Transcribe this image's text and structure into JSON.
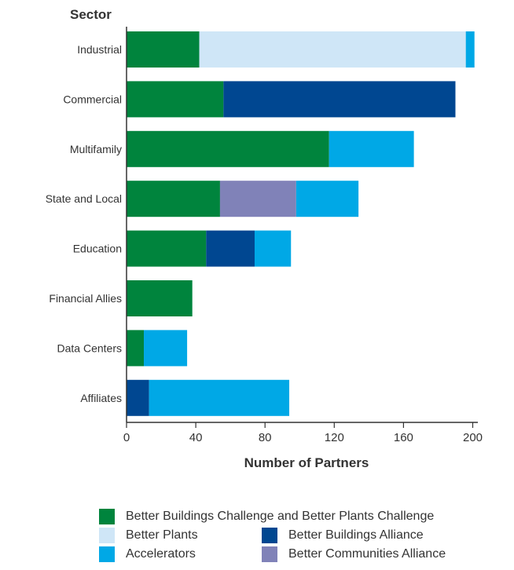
{
  "chart_data": {
    "type": "bar",
    "orientation": "horizontal",
    "stacked": true,
    "ylabel": "Sector",
    "xlabel": "Number of Partners",
    "xlim": [
      0,
      200
    ],
    "xticks": [
      0,
      40,
      80,
      120,
      160,
      200
    ],
    "grid": false,
    "legend_position": "bottom",
    "categories": [
      "Industrial",
      "Commercial",
      "Multifamily",
      "State and Local",
      "Education",
      "Financial Allies",
      "Data Centers",
      "Affiliates"
    ],
    "series": [
      {
        "name": "Better Buildings Challenge and Better Plants Challenge",
        "color": "#00843D",
        "values": [
          42,
          56,
          117,
          54,
          46,
          38,
          10,
          0
        ]
      },
      {
        "name": "Better Plants",
        "color": "#CFE6F7",
        "values": [
          154,
          0,
          0,
          0,
          0,
          0,
          0,
          0
        ]
      },
      {
        "name": "Better Buildings Alliance",
        "color": "#004791",
        "values": [
          0,
          134,
          0,
          0,
          28,
          0,
          0,
          13
        ]
      },
      {
        "name": "Better Communities Alliance",
        "color": "#8082B8",
        "values": [
          0,
          0,
          0,
          44,
          0,
          0,
          0,
          0
        ]
      },
      {
        "name": "Accelerators",
        "color": "#00A8E6",
        "values": [
          5,
          0,
          49,
          36,
          21,
          0,
          25,
          81
        ]
      }
    ]
  },
  "legend": {
    "items": [
      {
        "label": "Better Buildings Challenge and Better Plants Challenge",
        "color": "#00843D"
      },
      {
        "label": "Better Plants",
        "color": "#CFE6F7"
      },
      {
        "label": "Better Buildings Alliance",
        "color": "#004791"
      },
      {
        "label": "Accelerators",
        "color": "#00A8E6"
      },
      {
        "label": "Better Communities Alliance",
        "color": "#8082B8"
      }
    ]
  }
}
